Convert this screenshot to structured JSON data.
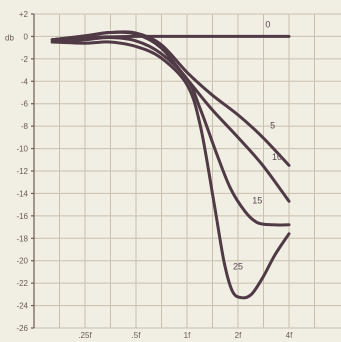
{
  "chart_data": {
    "type": "line",
    "y_unit": "db",
    "ylim": [
      -26,
      2
    ],
    "y_ticks": [
      2,
      0,
      -2,
      -4,
      -6,
      -8,
      -10,
      -12,
      -14,
      -16,
      -18,
      -20,
      -22,
      -24,
      -26
    ],
    "y_tick_labels": [
      "+2",
      "0",
      "-2",
      "-4",
      "-6",
      "-8",
      "-10",
      "-12",
      "-14",
      "-16",
      "-18",
      "-20",
      "-22",
      "-24",
      "-26"
    ],
    "x_ticks": [
      0.25,
      0.5,
      1,
      2,
      4
    ],
    "x_tick_labels": [
      ".25f",
      ".5f",
      "1f",
      "2f",
      "4f"
    ],
    "x_scale": "log2",
    "grid": true,
    "series": [
      {
        "name": "0",
        "x": [
          0.16,
          0.25,
          0.5,
          1,
          2,
          3,
          4
        ],
        "y": [
          -0.3,
          -0.1,
          0,
          0,
          0,
          0,
          0
        ]
      },
      {
        "name": "5",
        "x": [
          0.16,
          0.25,
          0.35,
          0.5,
          0.7,
          1,
          1.4,
          2,
          2.8,
          4
        ],
        "y": [
          -0.3,
          0.05,
          0.35,
          0.3,
          -0.7,
          -3.2,
          -5.2,
          -7.0,
          -9.0,
          -11.5
        ]
      },
      {
        "name": "10",
        "x": [
          0.16,
          0.25,
          0.35,
          0.5,
          0.7,
          1,
          1.4,
          2,
          2.8,
          4
        ],
        "y": [
          -0.3,
          0.05,
          0.35,
          0.2,
          -1.0,
          -3.8,
          -6.5,
          -9.0,
          -11.5,
          -14.7
        ]
      },
      {
        "name": "15",
        "x": [
          0.16,
          0.25,
          0.35,
          0.5,
          0.7,
          1,
          1.2,
          1.5,
          1.8,
          2.2,
          2.6,
          3.2,
          4
        ],
        "y": [
          -0.5,
          -0.3,
          -0.1,
          -0.4,
          -1.5,
          -3.8,
          -6.5,
          -10.5,
          -13.5,
          -15.6,
          -16.6,
          -16.8,
          -16.8
        ]
      },
      {
        "name": "25",
        "x": [
          0.16,
          0.25,
          0.35,
          0.5,
          0.7,
          1,
          1.2,
          1.45,
          1.65,
          1.85,
          2.1,
          2.4,
          2.8,
          3.3,
          4
        ],
        "y": [
          -0.5,
          -0.6,
          -0.5,
          -0.9,
          -1.9,
          -4.3,
          -8.0,
          -15.0,
          -20.0,
          -22.7,
          -23.3,
          -23.0,
          -21.5,
          -19.5,
          -17.6
        ]
      }
    ]
  }
}
